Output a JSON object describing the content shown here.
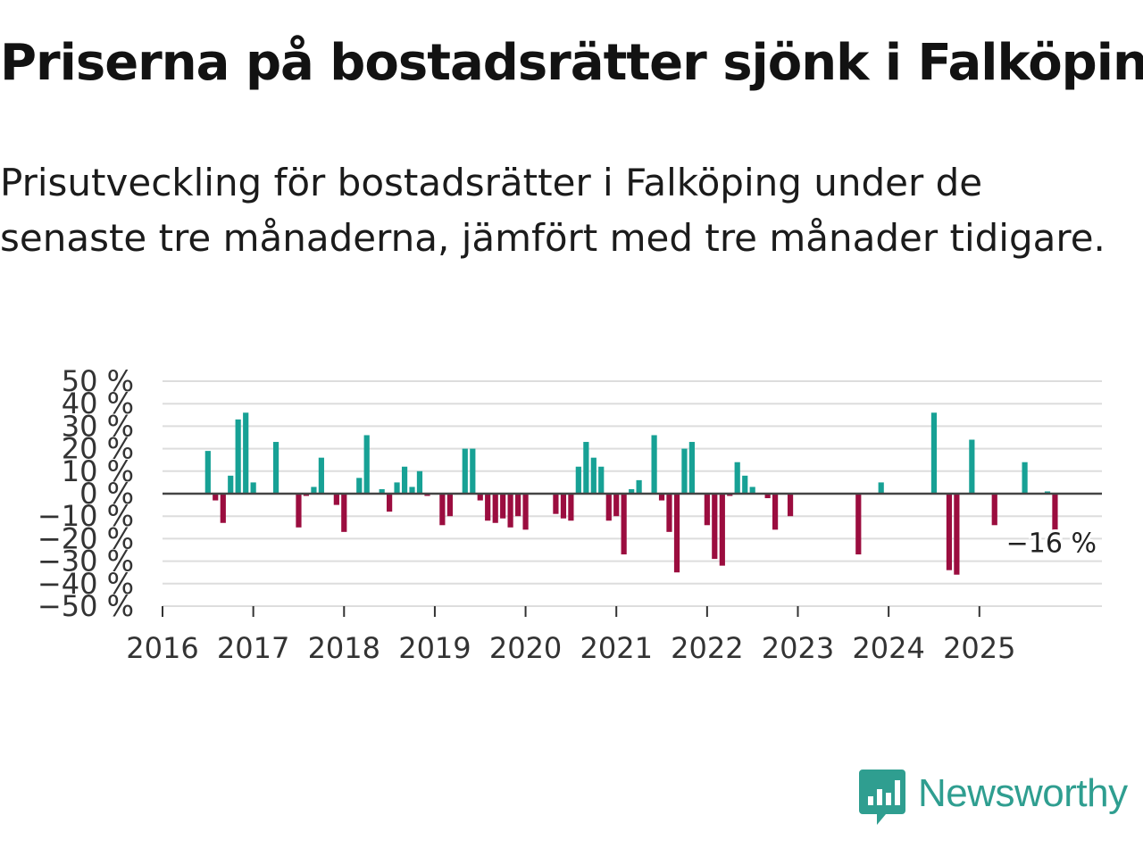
{
  "title": "Priserna på bostadsrätter sjönk i Falköping",
  "subtitle": "Prisutveckling för bostadsrätter i Falköping under de senaste tre månaderna, jämfört med tre månader tidigare.",
  "brand": {
    "name": "Newsworthy",
    "color": "#2f9e90",
    "icon": "newsworthy-bar-chart-icon"
  },
  "chart_data": {
    "type": "bar",
    "xlabel": "",
    "ylabel": "",
    "ylim": [
      -50,
      50
    ],
    "xlim": [
      2016.0,
      2026.35
    ],
    "grid": true,
    "colors": {
      "positive": "#17a195",
      "negative": "#9b0d3f",
      "zero_line": "#444444",
      "grid": "#dddddd",
      "axis": "#333333"
    },
    "y_ticks": [
      {
        "value": 50,
        "label": "50 %"
      },
      {
        "value": 40,
        "label": "40 %"
      },
      {
        "value": 30,
        "label": "30 %"
      },
      {
        "value": 20,
        "label": "20 %"
      },
      {
        "value": 10,
        "label": "10 %"
      },
      {
        "value": 0,
        "label": "0 %"
      },
      {
        "value": -10,
        "label": "−10 %"
      },
      {
        "value": -20,
        "label": "−20 %"
      },
      {
        "value": -30,
        "label": "−30 %"
      },
      {
        "value": -40,
        "label": "−40 %"
      },
      {
        "value": -50,
        "label": "−50 %"
      }
    ],
    "x_ticks": [
      {
        "value": 2016,
        "label": "2016"
      },
      {
        "value": 2017,
        "label": "2017"
      },
      {
        "value": 2018,
        "label": "2018"
      },
      {
        "value": 2019,
        "label": "2019"
      },
      {
        "value": 2020,
        "label": "2020"
      },
      {
        "value": 2021,
        "label": "2021"
      },
      {
        "value": 2022,
        "label": "2022"
      },
      {
        "value": 2023,
        "label": "2023"
      },
      {
        "value": 2024,
        "label": "2024"
      },
      {
        "value": 2025,
        "label": "2025"
      }
    ],
    "last_value_label": "−16 %",
    "series": [
      {
        "name": "Prisutveckling",
        "x": [
          2016.5,
          2016.583,
          2016.667,
          2016.75,
          2016.833,
          2016.917,
          2017.0,
          2017.25,
          2017.5,
          2017.583,
          2017.667,
          2017.75,
          2017.917,
          2018.0,
          2018.167,
          2018.25,
          2018.417,
          2018.5,
          2018.583,
          2018.667,
          2018.75,
          2018.833,
          2018.917,
          2019.083,
          2019.167,
          2019.333,
          2019.417,
          2019.5,
          2019.583,
          2019.667,
          2019.75,
          2019.833,
          2019.917,
          2020.0,
          2020.333,
          2020.417,
          2020.5,
          2020.583,
          2020.667,
          2020.75,
          2020.833,
          2020.917,
          2021.0,
          2021.083,
          2021.167,
          2021.25,
          2021.417,
          2021.5,
          2021.583,
          2021.667,
          2021.75,
          2021.833,
          2022.0,
          2022.083,
          2022.167,
          2022.25,
          2022.333,
          2022.417,
          2022.5,
          2022.667,
          2022.75,
          2022.917,
          2023.667,
          2023.917,
          2024.5,
          2024.667,
          2024.75,
          2024.917,
          2025.167,
          2025.5,
          2025.75,
          2025.833
        ],
        "values": [
          19,
          -3,
          -13,
          8,
          33,
          36,
          5,
          23,
          -15,
          -1,
          3,
          16,
          -5,
          -17,
          7,
          26,
          2,
          -8,
          5,
          12,
          3,
          10,
          -1,
          -14,
          -10,
          20,
          20,
          -3,
          -12,
          -13,
          -11,
          -15,
          -10,
          -16,
          -9,
          -11,
          -12,
          12,
          23,
          16,
          12,
          -12,
          -10,
          -27,
          2,
          6,
          26,
          -3,
          -17,
          -35,
          20,
          23,
          -14,
          -29,
          -32,
          -1,
          14,
          8,
          3,
          -2,
          -16,
          -10,
          -27,
          5,
          36,
          -34,
          -36,
          24,
          -14,
          14,
          1,
          -16
        ]
      }
    ]
  }
}
